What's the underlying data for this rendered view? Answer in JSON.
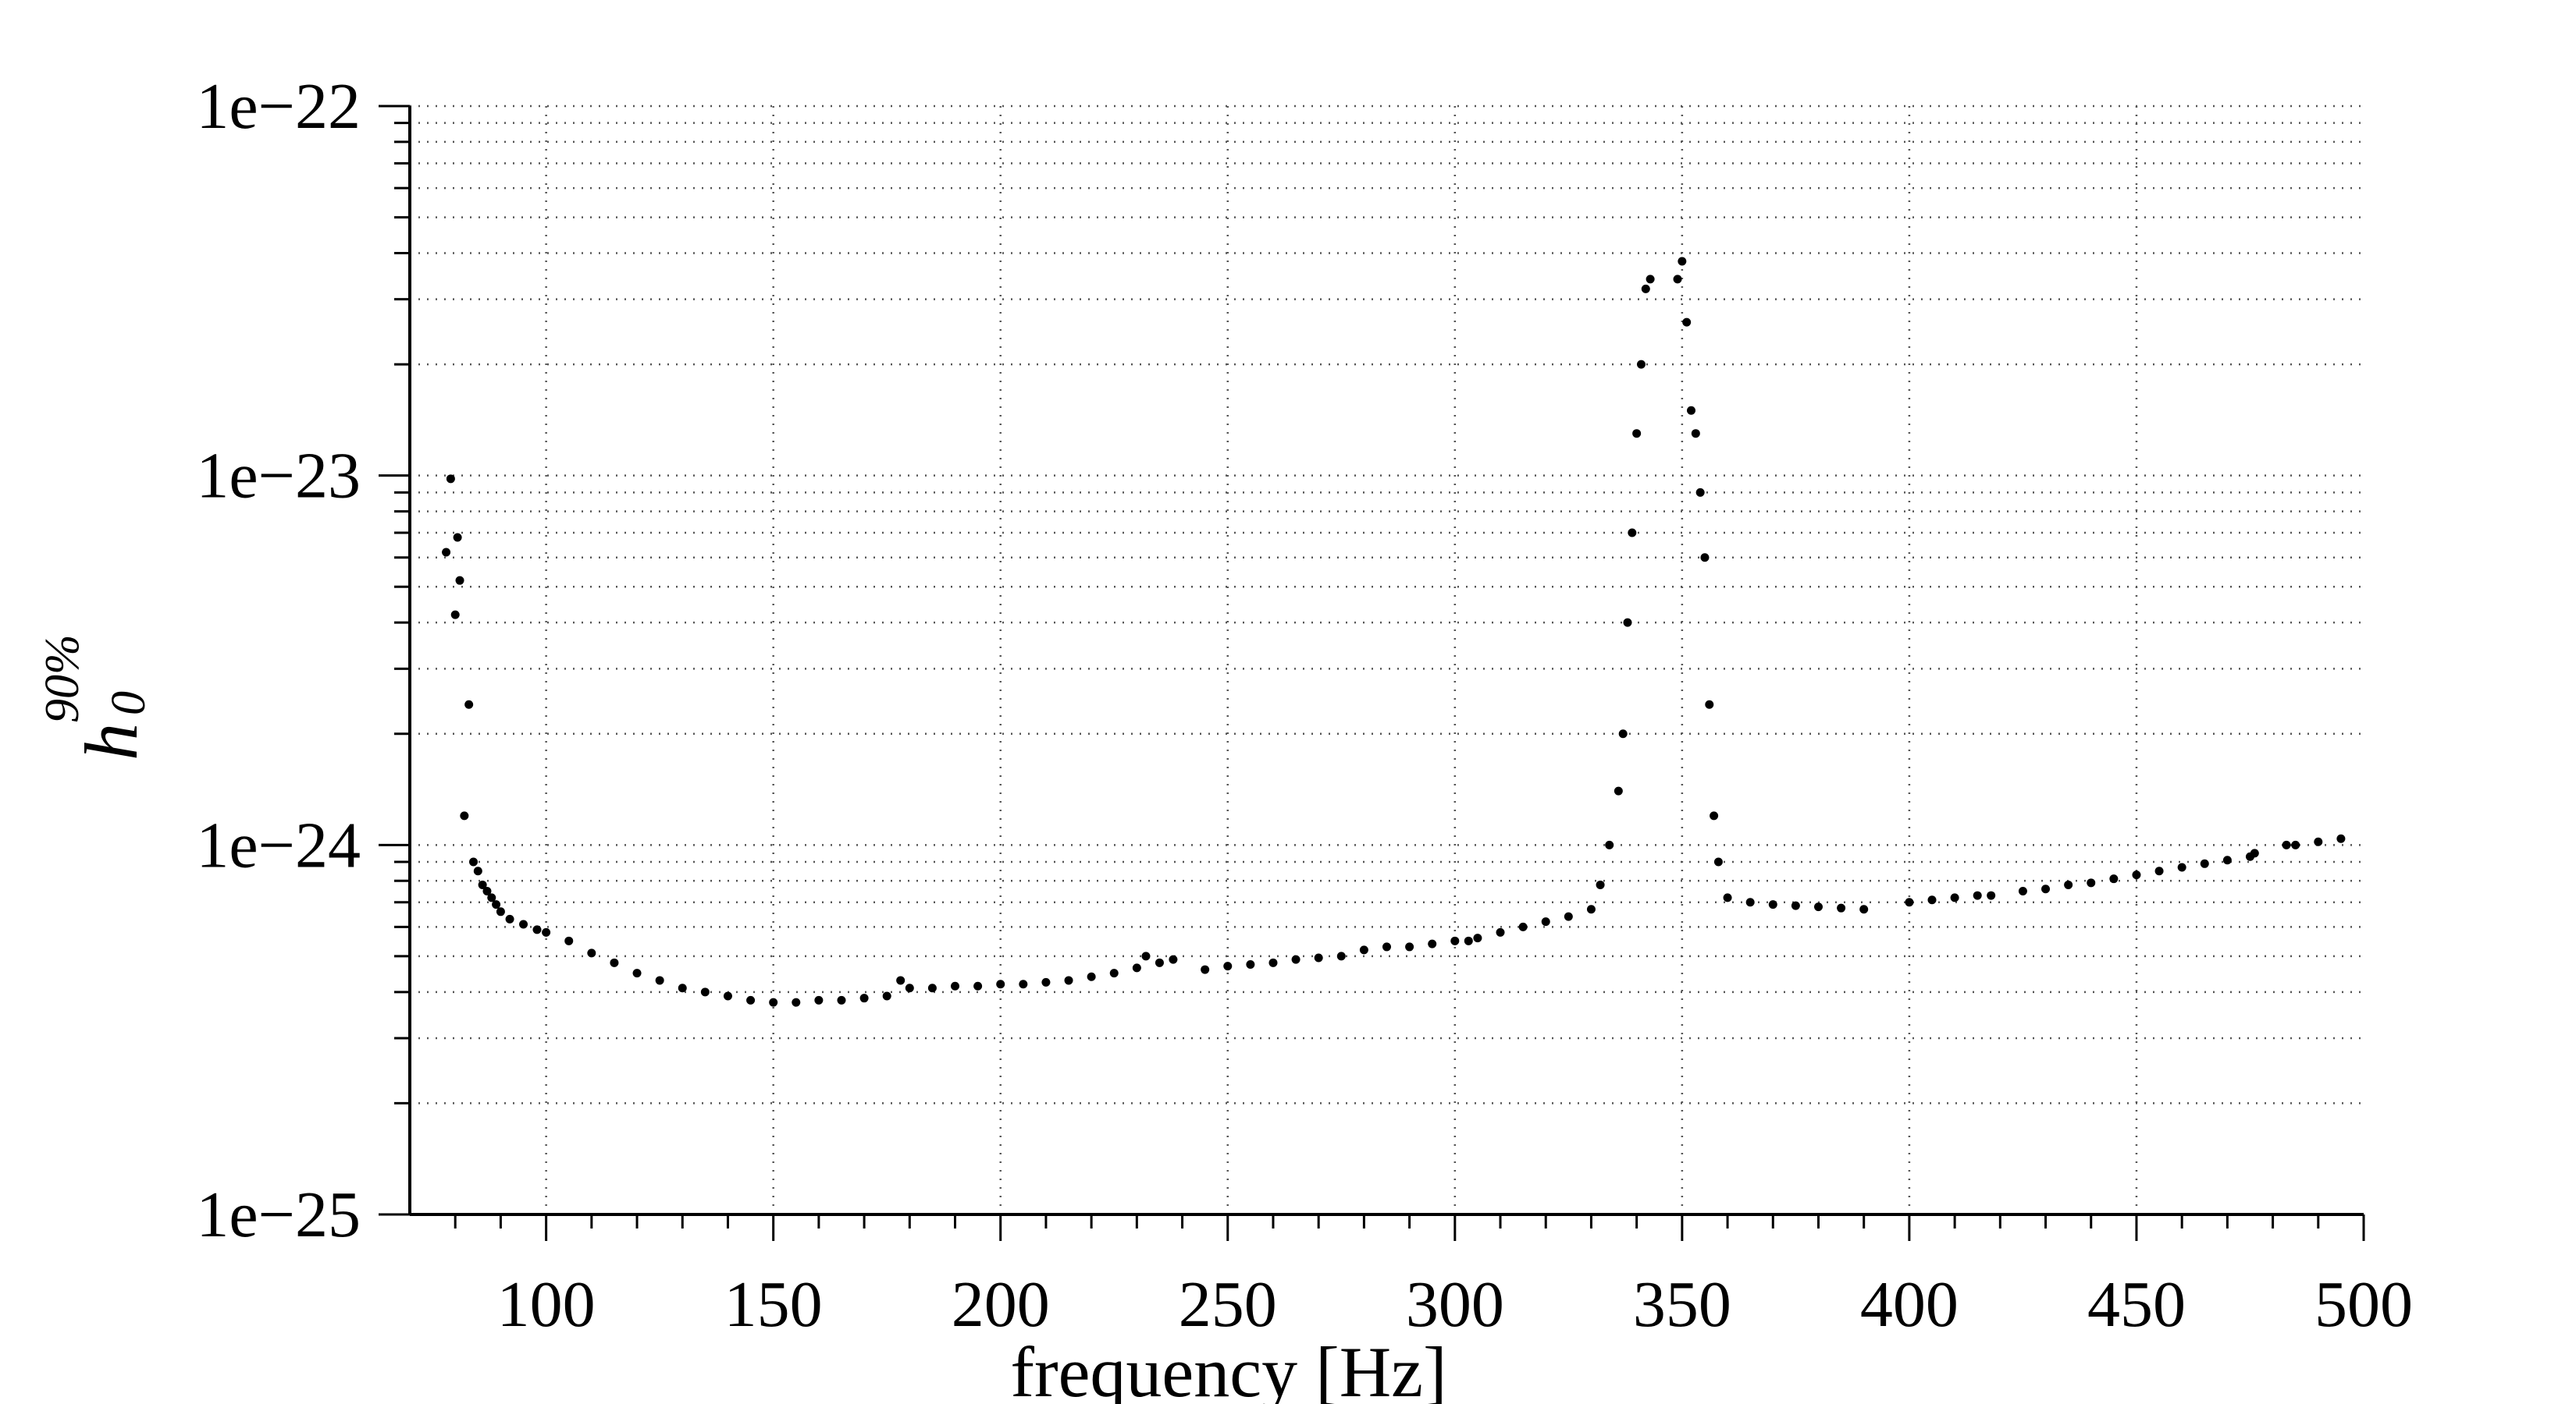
{
  "chart_data": {
    "type": "scatter",
    "title": "",
    "xlabel": "frequency [Hz]",
    "ylabel": {
      "base": "h",
      "sub": "0",
      "sup": "90%"
    },
    "xlim": [
      70,
      500
    ],
    "ylim": [
      1e-25,
      1e-22
    ],
    "yscale": "log",
    "grid": true,
    "legend": "none",
    "x_ticks": [
      100,
      150,
      200,
      250,
      300,
      350,
      400,
      450,
      500
    ],
    "x_tick_labels": [
      "100",
      "150",
      "200",
      "250",
      "300",
      "350",
      "400",
      "450",
      "500"
    ],
    "y_ticks": [
      1e-25,
      1e-24,
      1e-23,
      1e-22
    ],
    "y_tick_labels": [
      "1e−25",
      "1e−24",
      "1e−23",
      "1e−22"
    ],
    "marker_color": "#000000",
    "series": [
      {
        "x": [
          78,
          79,
          80,
          80.5,
          81,
          82,
          83,
          84,
          85,
          86,
          87,
          88,
          89,
          90,
          92,
          95,
          98,
          100,
          105,
          110,
          115,
          120,
          125,
          130,
          135,
          140,
          145,
          150,
          155,
          160,
          165,
          170,
          175,
          178,
          180,
          185,
          190,
          195,
          200,
          205,
          210,
          215,
          220,
          225,
          230,
          232,
          235,
          238,
          245,
          250,
          255,
          260,
          265,
          270,
          275,
          280,
          285,
          290,
          295,
          300,
          303,
          305,
          310,
          315,
          320,
          325,
          330,
          332,
          334,
          336,
          337,
          338,
          339,
          340,
          341,
          342,
          343,
          349,
          350,
          351,
          352,
          353,
          354,
          355,
          356,
          357,
          358,
          360,
          365,
          370,
          375,
          380,
          385,
          390,
          400,
          405,
          410,
          415,
          418,
          425,
          430,
          435,
          440,
          445,
          450,
          455,
          460,
          465,
          470,
          475,
          476,
          483,
          485,
          490,
          495
        ],
        "y": [
          6.2e-24,
          9.8e-24,
          4.2e-24,
          6.8e-24,
          5.2e-24,
          1.2e-24,
          2.4e-24,
          9e-25,
          8.5e-25,
          7.8e-25,
          7.5e-25,
          7.2e-25,
          6.9e-25,
          6.6e-25,
          6.3e-25,
          6.1e-25,
          5.9e-25,
          5.8e-25,
          5.5e-25,
          5.1e-25,
          4.8e-25,
          4.5e-25,
          4.3e-25,
          4.1e-25,
          4e-25,
          3.9e-25,
          3.8e-25,
          3.75e-25,
          3.75e-25,
          3.8e-25,
          3.8e-25,
          3.85e-25,
          3.9e-25,
          4.3e-25,
          4.1e-25,
          4.1e-25,
          4.15e-25,
          4.15e-25,
          4.2e-25,
          4.2e-25,
          4.25e-25,
          4.3e-25,
          4.4e-25,
          4.5e-25,
          4.65e-25,
          5e-25,
          4.8e-25,
          4.9e-25,
          4.6e-25,
          4.7e-25,
          4.75e-25,
          4.8e-25,
          4.9e-25,
          4.95e-25,
          5e-25,
          5.2e-25,
          5.3e-25,
          5.3e-25,
          5.4e-25,
          5.5e-25,
          5.5e-25,
          5.6e-25,
          5.8e-25,
          6e-25,
          6.2e-25,
          6.4e-25,
          6.7e-25,
          7.8e-25,
          1e-24,
          1.4e-24,
          2e-24,
          4e-24,
          7e-24,
          1.3e-23,
          2e-23,
          3.2e-23,
          3.4e-23,
          3.4e-23,
          3.8e-23,
          2.6e-23,
          1.5e-23,
          1.3e-23,
          9e-24,
          6e-24,
          2.4e-24,
          1.2e-24,
          9e-25,
          7.2e-25,
          7e-25,
          6.9e-25,
          6.85e-25,
          6.8e-25,
          6.75e-25,
          6.7e-25,
          7e-25,
          7.1e-25,
          7.2e-25,
          7.3e-25,
          7.3e-25,
          7.5e-25,
          7.6e-25,
          7.8e-25,
          7.9e-25,
          8.1e-25,
          8.3e-25,
          8.5e-25,
          8.7e-25,
          8.9e-25,
          9.1e-25,
          9.3e-25,
          9.5e-25,
          1e-24,
          1e-24,
          1.02e-24,
          1.04e-24
        ]
      }
    ]
  }
}
